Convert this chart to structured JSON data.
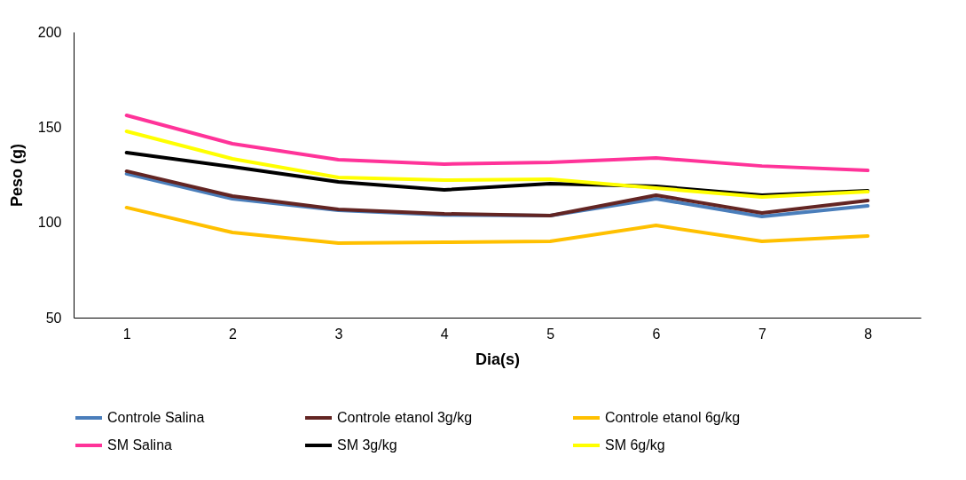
{
  "chart_data": {
    "type": "line",
    "xlabel": "Dia(s)",
    "ylabel": "Peso (g)",
    "categories": [
      "1",
      "2",
      "3",
      "4",
      "5",
      "6",
      "7",
      "8"
    ],
    "ylim": [
      50,
      200
    ],
    "yticks": [
      50,
      100,
      150,
      200
    ],
    "grid": false,
    "legend": "bottom",
    "marker": "none",
    "line_style": "solid",
    "series": [
      {
        "name": "Controle Salina",
        "color": "#4a7ebb",
        "values": [
          125.5,
          112.4,
          106.4,
          103.9,
          103.6,
          112.4,
          103.1,
          108.7
        ]
      },
      {
        "name": "Controle etanol 3g/kg",
        "color": "#632523",
        "values": [
          126.9,
          113.8,
          106.8,
          104.5,
          103.6,
          114.3,
          105.0,
          111.5
        ]
      },
      {
        "name": "Controle etanol 6g/kg",
        "color": "#ffc000",
        "values": [
          107.8,
          94.7,
          89.1,
          89.6,
          90.1,
          98.4,
          90.1,
          92.9
        ]
      },
      {
        "name": "SM Salina",
        "color": "#ff3399",
        "values": [
          156.2,
          141.3,
          132.9,
          130.6,
          131.5,
          133.8,
          129.6,
          127.3
        ]
      },
      {
        "name": "SM 3g/kg",
        "color": "#000000",
        "values": [
          136.6,
          129.2,
          121.3,
          117.1,
          120.3,
          118.9,
          114.3,
          116.6
        ]
      },
      {
        "name": "SM 6g/kg",
        "color": "#ffff00",
        "values": [
          147.8,
          133.4,
          123.6,
          122.2,
          122.7,
          118.0,
          113.3,
          116.1
        ]
      }
    ]
  }
}
